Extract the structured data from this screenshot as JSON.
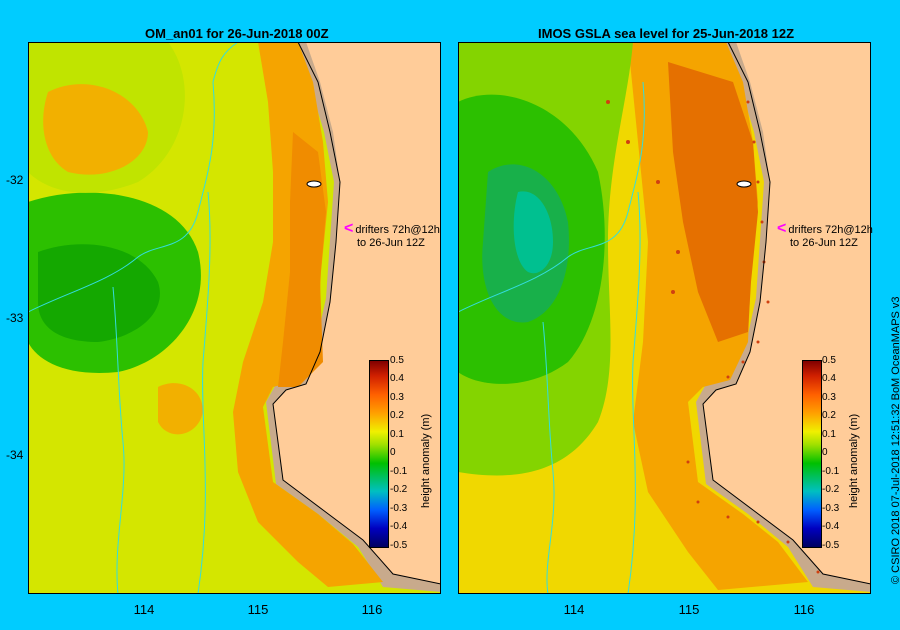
{
  "left_panel": {
    "title": "OM_an01  for 26-Jun-2018 00Z",
    "annotation_line1": "drifters 72h@12h",
    "annotation_line2": "to 26-Jun 12Z",
    "colorbar_label": "height anomaly (m)"
  },
  "right_panel": {
    "title": "IMOS GSLA sea level  for 25-Jun-2018 12Z",
    "annotation_line1": "drifters 72h@12h",
    "annotation_line2": "to 26-Jun 12Z",
    "colorbar_label": "height anomaly (m)"
  },
  "axes": {
    "lat_ticks": [
      "-32",
      "-33",
      "-34"
    ],
    "lon_ticks": [
      "114",
      "115",
      "116"
    ]
  },
  "colorbar": {
    "ticks": [
      "0.5",
      "0.4",
      "0.3",
      "0.2",
      "0.1",
      "0",
      "-0.1",
      "-0.2",
      "-0.3",
      "-0.4",
      "-0.5"
    ],
    "range": [
      -0.5,
      0.5
    ]
  },
  "credit": "© CSIRO 2018   07-Jul-2018 12:51:32 BoM OceanMAPS v3",
  "colors": {
    "background": "#00ccff",
    "land": "#ffcc99",
    "shelf": "#c8aa8c",
    "marker": "#ff00ff"
  }
}
